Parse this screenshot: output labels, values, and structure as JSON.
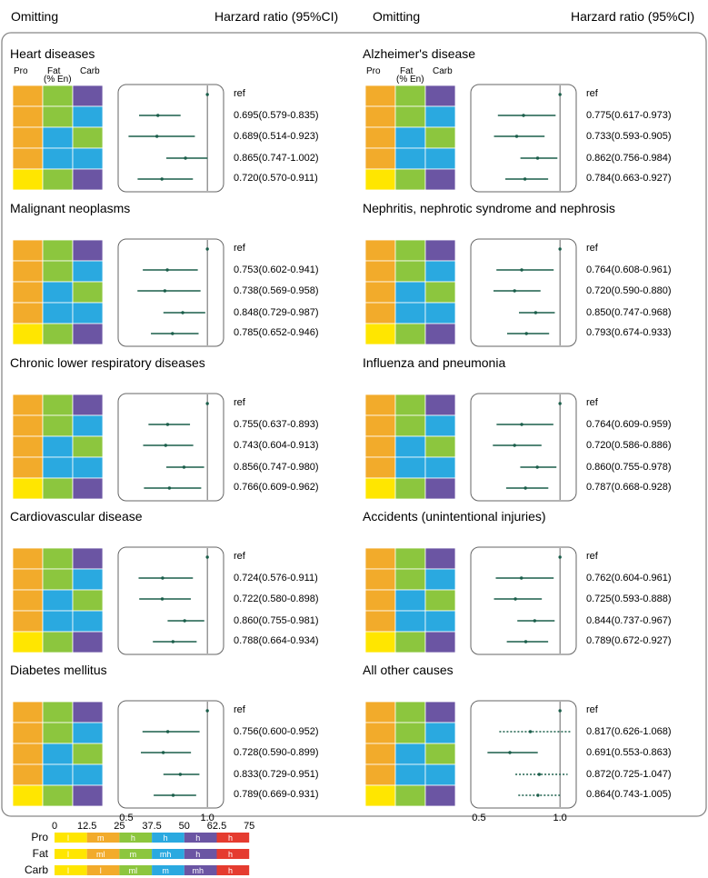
{
  "header": {
    "omitting_label": "Omitting",
    "hr_label": "Harzard ratio (95%CI)"
  },
  "macro_labels": {
    "pro": "Pro",
    "fat": "Fat",
    "fat_sub": "(% En)",
    "carb": "Carb"
  },
  "ref_label": "ref",
  "colors": {
    "l": "#ffe600",
    "ml": "#f2ab2b",
    "m": "#8cc63e",
    "mh": "#2aa9e0",
    "h": "#6b55a3",
    "vh": "#e53b2f",
    "forest": "#1a5e4a"
  },
  "grid_rows": [
    [
      "ml",
      "m",
      "h"
    ],
    [
      "ml",
      "m",
      "mh"
    ],
    [
      "ml",
      "mh",
      "m"
    ],
    [
      "ml",
      "mh",
      "mh"
    ],
    [
      "l",
      "m",
      "h"
    ]
  ],
  "chart_data": [
    {
      "type": "forest",
      "title": "Heart diseases",
      "show_macro_header": true,
      "show_axis": false,
      "xlim": [
        0.45,
        1.1
      ],
      "reference": 1.0,
      "estimates": [
        0.695,
        0.689,
        0.865,
        0.72
      ],
      "lower": [
        0.579,
        0.514,
        0.747,
        0.57
      ],
      "upper": [
        0.835,
        0.923,
        1.002,
        0.911
      ],
      "labels": [
        "0.695(0.579-0.835)",
        "0.689(0.514-0.923)",
        "0.865(0.747-1.002)",
        "0.720(0.570-0.911)"
      ],
      "dotted": [
        false,
        false,
        false,
        false
      ]
    },
    {
      "type": "forest",
      "title": "Alzheimer's disease",
      "show_macro_header": true,
      "show_axis": false,
      "xlim": [
        0.45,
        1.1
      ],
      "reference": 1.0,
      "estimates": [
        0.775,
        0.733,
        0.862,
        0.784
      ],
      "lower": [
        0.617,
        0.593,
        0.756,
        0.663
      ],
      "upper": [
        0.973,
        0.905,
        0.984,
        0.927
      ],
      "labels": [
        "0.775(0.617-0.973)",
        "0.733(0.593-0.905)",
        "0.862(0.756-0.984)",
        "0.784(0.663-0.927)"
      ],
      "dotted": [
        false,
        false,
        false,
        false
      ]
    },
    {
      "type": "forest",
      "title": "Malignant neoplasms",
      "show_macro_header": false,
      "show_axis": false,
      "xlim": [
        0.45,
        1.1
      ],
      "reference": 1.0,
      "estimates": [
        0.753,
        0.738,
        0.848,
        0.785
      ],
      "lower": [
        0.602,
        0.569,
        0.729,
        0.652
      ],
      "upper": [
        0.941,
        0.958,
        0.987,
        0.946
      ],
      "labels": [
        "0.753(0.602-0.941)",
        "0.738(0.569-0.958)",
        "0.848(0.729-0.987)",
        "0.785(0.652-0.946)"
      ],
      "dotted": [
        false,
        false,
        false,
        false
      ]
    },
    {
      "type": "forest",
      "title": "Nephritis, nephrotic syndrome and nephrosis",
      "show_macro_header": false,
      "show_axis": false,
      "xlim": [
        0.45,
        1.1
      ],
      "reference": 1.0,
      "estimates": [
        0.764,
        0.72,
        0.85,
        0.793
      ],
      "lower": [
        0.608,
        0.59,
        0.747,
        0.674
      ],
      "upper": [
        0.961,
        0.88,
        0.968,
        0.933
      ],
      "labels": [
        "0.764(0.608-0.961)",
        "0.720(0.590-0.880)",
        "0.850(0.747-0.968)",
        "0.793(0.674-0.933)"
      ],
      "dotted": [
        false,
        false,
        false,
        false
      ]
    },
    {
      "type": "forest",
      "title": "Chronic lower respiratory diseases",
      "show_macro_header": false,
      "show_axis": false,
      "xlim": [
        0.45,
        1.1
      ],
      "reference": 1.0,
      "estimates": [
        0.755,
        0.743,
        0.856,
        0.766
      ],
      "lower": [
        0.637,
        0.604,
        0.747,
        0.609
      ],
      "upper": [
        0.893,
        0.913,
        0.98,
        0.962
      ],
      "labels": [
        "0.755(0.637-0.893)",
        "0.743(0.604-0.913)",
        "0.856(0.747-0.980)",
        "0.766(0.609-0.962)"
      ],
      "dotted": [
        false,
        false,
        false,
        false
      ]
    },
    {
      "type": "forest",
      "title": "Influenza and  pneumonia",
      "show_macro_header": false,
      "show_axis": false,
      "xlim": [
        0.45,
        1.1
      ],
      "reference": 1.0,
      "estimates": [
        0.764,
        0.72,
        0.86,
        0.787
      ],
      "lower": [
        0.609,
        0.586,
        0.755,
        0.668
      ],
      "upper": [
        0.959,
        0.886,
        0.978,
        0.928
      ],
      "labels": [
        "0.764(0.609-0.959)",
        "0.720(0.586-0.886)",
        "0.860(0.755-0.978)",
        "0.787(0.668-0.928)"
      ],
      "dotted": [
        false,
        false,
        false,
        false
      ]
    },
    {
      "type": "forest",
      "title": "Cardiovascular disease",
      "show_macro_header": false,
      "show_axis": false,
      "xlim": [
        0.45,
        1.1
      ],
      "reference": 1.0,
      "estimates": [
        0.724,
        0.722,
        0.86,
        0.788
      ],
      "lower": [
        0.576,
        0.58,
        0.755,
        0.664
      ],
      "upper": [
        0.911,
        0.898,
        0.981,
        0.934
      ],
      "labels": [
        "0.724(0.576-0.911)",
        "0.722(0.580-0.898)",
        "0.860(0.755-0.981)",
        "0.788(0.664-0.934)"
      ],
      "dotted": [
        false,
        false,
        false,
        false
      ]
    },
    {
      "type": "forest",
      "title": "Accidents (unintentional  injuries)",
      "show_macro_header": false,
      "show_axis": false,
      "xlim": [
        0.45,
        1.1
      ],
      "reference": 1.0,
      "estimates": [
        0.762,
        0.725,
        0.844,
        0.789
      ],
      "lower": [
        0.604,
        0.593,
        0.737,
        0.672
      ],
      "upper": [
        0.961,
        0.888,
        0.967,
        0.927
      ],
      "labels": [
        "0.762(0.604-0.961)",
        "0.725(0.593-0.888)",
        "0.844(0.737-0.967)",
        "0.789(0.672-0.927)"
      ],
      "dotted": [
        false,
        false,
        false,
        false
      ]
    },
    {
      "type": "forest",
      "title": "Diabetes mellitus",
      "show_macro_header": false,
      "show_axis": true,
      "xlim": [
        0.45,
        1.1
      ],
      "reference": 1.0,
      "ticks": [
        "0.5",
        "1.0"
      ],
      "estimates": [
        0.756,
        0.728,
        0.833,
        0.789
      ],
      "lower": [
        0.6,
        0.59,
        0.729,
        0.669
      ],
      "upper": [
        0.952,
        0.899,
        0.951,
        0.931
      ],
      "labels": [
        "0.756(0.600-0.952)",
        "0.728(0.590-0.899)",
        "0.833(0.729-0.951)",
        "0.789(0.669-0.931)"
      ],
      "dotted": [
        false,
        false,
        false,
        false
      ]
    },
    {
      "type": "forest",
      "title": "All other causes",
      "show_macro_header": false,
      "show_axis": true,
      "xlim": [
        0.45,
        1.1
      ],
      "reference": 1.0,
      "ticks": [
        "0.5",
        "1.0"
      ],
      "estimates": [
        0.817,
        0.691,
        0.872,
        0.864
      ],
      "lower": [
        0.626,
        0.553,
        0.725,
        0.743
      ],
      "upper": [
        1.068,
        0.863,
        1.047,
        1.005
      ],
      "labels": [
        "0.817(0.626-1.068)",
        "0.691(0.553-0.863)",
        "0.872(0.725-1.047)",
        "0.864(0.743-1.005)"
      ],
      "dotted": [
        true,
        false,
        true,
        true
      ]
    }
  ],
  "legend": {
    "scale_ticks": [
      "0",
      "12.5",
      "25",
      "37.5",
      "50",
      "62.5",
      "75"
    ],
    "rows": [
      {
        "name": "Pro",
        "segments": [
          {
            "label": "l",
            "color": "l"
          },
          {
            "label": "m",
            "color": "ml"
          },
          {
            "label": "h",
            "color": "m"
          },
          {
            "label": "h",
            "color": "mh"
          },
          {
            "label": "h",
            "color": "h"
          },
          {
            "label": "h",
            "color": "vh"
          }
        ]
      },
      {
        "name": "Fat",
        "segments": [
          {
            "label": "l",
            "color": "l"
          },
          {
            "label": "ml",
            "color": "ml"
          },
          {
            "label": "m",
            "color": "m"
          },
          {
            "label": "mh",
            "color": "mh"
          },
          {
            "label": "h",
            "color": "h"
          },
          {
            "label": "h",
            "color": "vh"
          }
        ]
      },
      {
        "name": "Carb",
        "segments": [
          {
            "label": "l",
            "color": "l"
          },
          {
            "label": "l",
            "color": "ml"
          },
          {
            "label": "ml",
            "color": "m"
          },
          {
            "label": "m",
            "color": "mh"
          },
          {
            "label": "mh",
            "color": "h"
          },
          {
            "label": "h",
            "color": "vh"
          }
        ]
      }
    ]
  }
}
